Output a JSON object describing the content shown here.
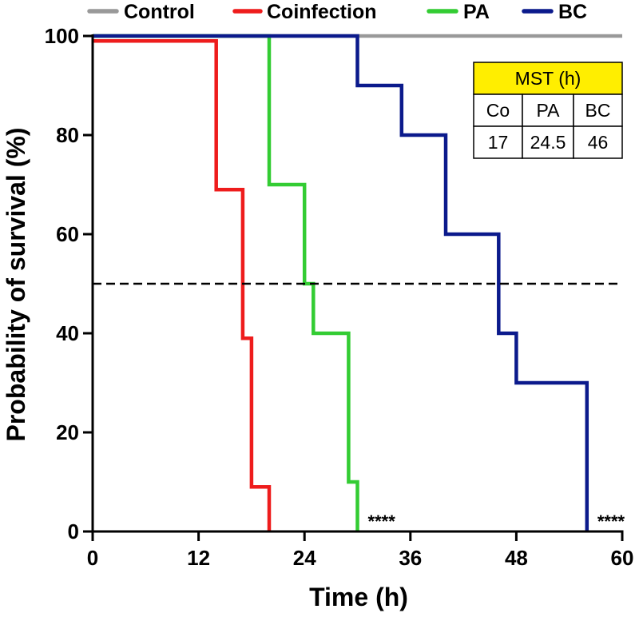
{
  "chart_data": {
    "type": "line",
    "subtype": "kaplan-meier step survival",
    "xlabel": "Time (h)",
    "ylabel": "Probability of survival (%)",
    "xlim": [
      0,
      60
    ],
    "ylim": [
      0,
      100
    ],
    "xticks": [
      0,
      12,
      24,
      36,
      48,
      60
    ],
    "yticks": [
      0,
      20,
      40,
      60,
      80,
      100
    ],
    "reference_line": {
      "y": 50,
      "style": "dashed",
      "color": "#000000"
    },
    "legend_position": "top",
    "series": [
      {
        "name": "Control",
        "color": "#999999",
        "steps": [
          [
            0,
            100
          ],
          [
            60,
            100
          ]
        ]
      },
      {
        "name": "Coinfection",
        "color": "#ee1c1c",
        "steps": [
          [
            0,
            99
          ],
          [
            14,
            99
          ],
          [
            14,
            69
          ],
          [
            17,
            69
          ],
          [
            17,
            39
          ],
          [
            18,
            39
          ],
          [
            18,
            9
          ],
          [
            20,
            9
          ],
          [
            20,
            0
          ]
        ]
      },
      {
        "name": "PA",
        "color": "#33cc33",
        "steps": [
          [
            0,
            100
          ],
          [
            20,
            100
          ],
          [
            20,
            70
          ],
          [
            24,
            70
          ],
          [
            24,
            50
          ],
          [
            25,
            50
          ],
          [
            25,
            40
          ],
          [
            29,
            40
          ],
          [
            29,
            10
          ],
          [
            30,
            10
          ],
          [
            30,
            0
          ]
        ]
      },
      {
        "name": "BC",
        "color": "#0b1a8c",
        "steps": [
          [
            0,
            100
          ],
          [
            30,
            100
          ],
          [
            30,
            90
          ],
          [
            35,
            90
          ],
          [
            35,
            80
          ],
          [
            40,
            80
          ],
          [
            40,
            60
          ],
          [
            46,
            60
          ],
          [
            46,
            40
          ],
          [
            48,
            40
          ],
          [
            48,
            30
          ],
          [
            56,
            30
          ],
          [
            56,
            0
          ]
        ]
      }
    ],
    "annotations": [
      {
        "text": "****",
        "x": 31,
        "y": 0
      },
      {
        "text": "****",
        "x": 57,
        "y": 0
      }
    ],
    "inset_table": {
      "title": "MST (h)",
      "title_bg": "#ffee00",
      "headers": [
        "Co",
        "PA",
        "BC"
      ],
      "values": [
        "17",
        "24.5",
        "46"
      ],
      "position": "top-right"
    }
  }
}
